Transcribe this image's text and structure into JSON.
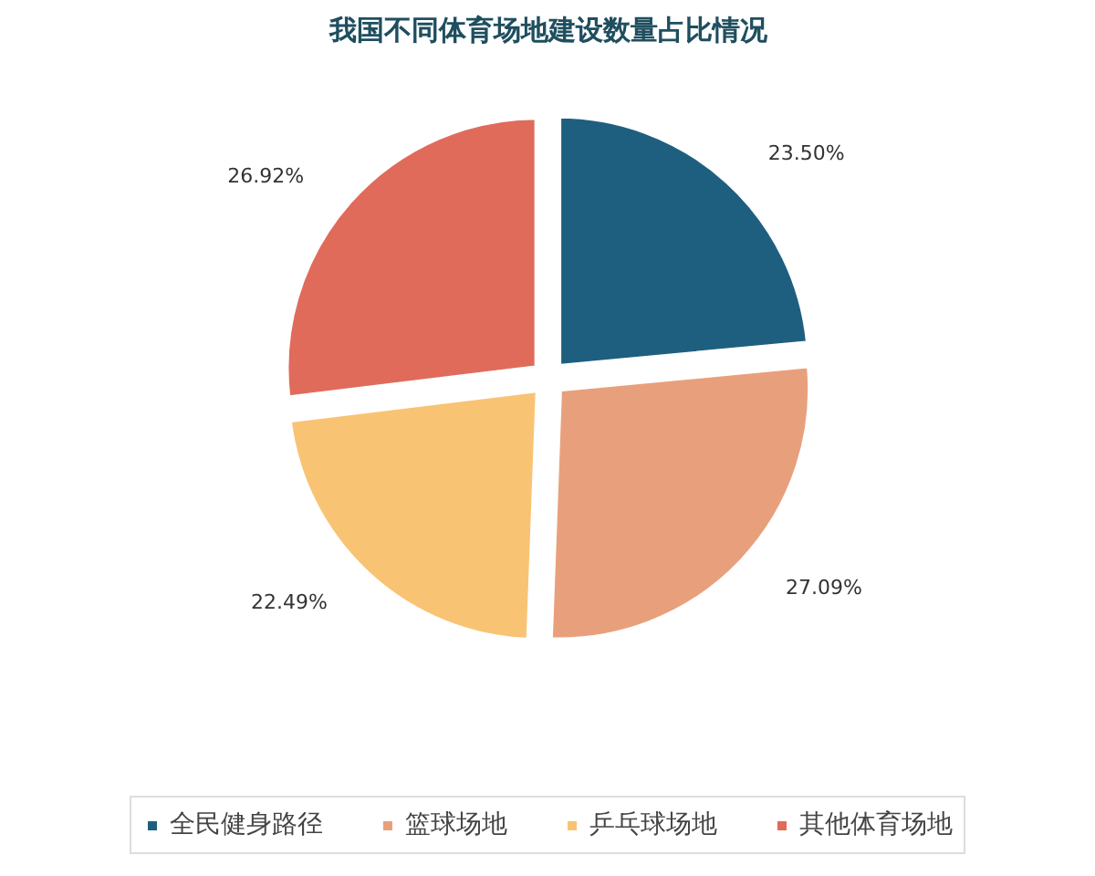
{
  "chart_data": {
    "type": "pie",
    "title": "我国不同体育场地建设数量占比情况",
    "categories": [
      "全民健身路径",
      "篮球场地",
      "乒乓球场地",
      "其他体育场地"
    ],
    "values": [
      23.5,
      27.09,
      22.49,
      26.92
    ],
    "colors": [
      "#1e5f80",
      "#e8a07c",
      "#f9c374",
      "#e06b5b"
    ],
    "value_labels": [
      "23.50%",
      "27.09%",
      "22.49%",
      "26.92%"
    ],
    "legend": "bottom"
  }
}
